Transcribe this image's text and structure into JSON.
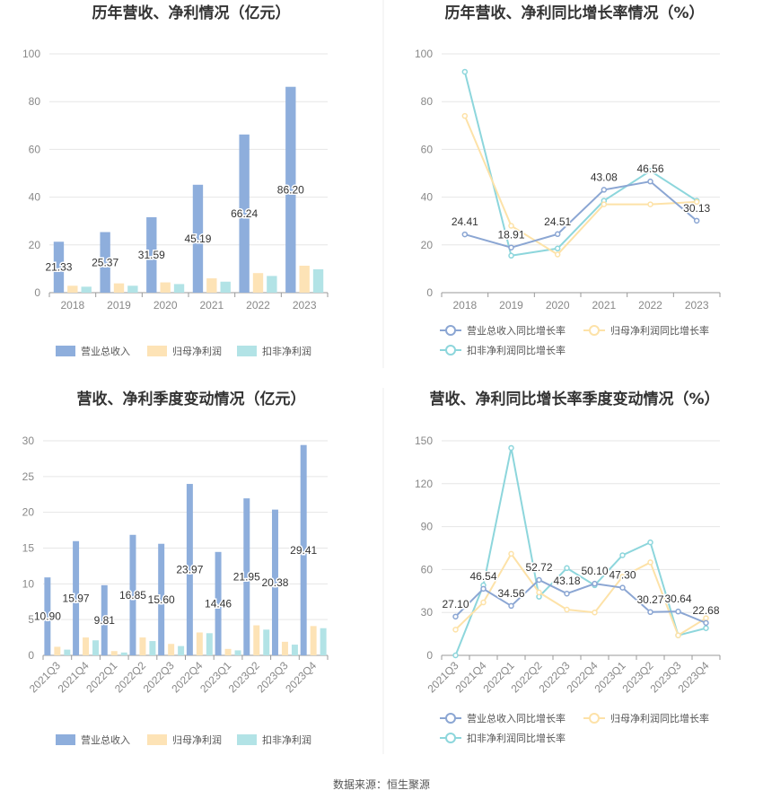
{
  "colors": {
    "revenue": "#8eaedc",
    "net": "#fde3b6",
    "deducted": "#b2e3e6",
    "revenue_line": "#8ba6d3",
    "net_line": "#fde2a8",
    "deducted_line": "#8dd6dc"
  },
  "legend_bars": [
    "营业总收入",
    "归母净利润",
    "扣非净利润"
  ],
  "legend_lines": [
    "营业总收入同比增长率",
    "归母净利润同比增长率",
    "扣非净利润同比增长率"
  ],
  "source": "数据来源：恒生聚源",
  "chart_data": [
    {
      "type": "bar",
      "title": "历年营收、净利情况（亿元）",
      "categories": [
        "2018",
        "2019",
        "2020",
        "2021",
        "2022",
        "2023"
      ],
      "ylim": [
        0,
        100
      ],
      "yticks": [
        0,
        20,
        40,
        60,
        80,
        100
      ],
      "series": [
        {
          "name": "营业总收入",
          "values": [
            21.33,
            25.37,
            31.59,
            45.19,
            66.24,
            86.2
          ],
          "labels": [
            "21.33",
            "25.37",
            "31.59",
            "45.19",
            "66.24",
            "86.20"
          ]
        },
        {
          "name": "归母净利润",
          "values": [
            2.9,
            3.9,
            4.3,
            6.0,
            8.2,
            11.3
          ]
        },
        {
          "name": "扣非净利润",
          "values": [
            2.5,
            2.9,
            3.6,
            4.6,
            7.0,
            9.8
          ]
        }
      ],
      "grid": true,
      "legend": "bottom"
    },
    {
      "type": "line",
      "title": "历年营收、净利同比增长率情况（%）",
      "categories": [
        "2018",
        "2019",
        "2020",
        "2021",
        "2022",
        "2023"
      ],
      "ylim": [
        0,
        100
      ],
      "yticks": [
        0,
        20,
        40,
        60,
        80,
        100
      ],
      "series": [
        {
          "name": "营业总收入同比增长率",
          "values": [
            24.41,
            18.91,
            24.51,
            43.08,
            46.56,
            30.13
          ],
          "labels": [
            "24.41",
            "18.91",
            "24.51",
            "43.08",
            "46.56",
            "30.13"
          ]
        },
        {
          "name": "归母净利润同比增长率",
          "values": [
            74.0,
            28.0,
            16.0,
            37.0,
            37.0,
            38.0
          ]
        },
        {
          "name": "扣非净利润同比增长率",
          "values": [
            92.5,
            15.5,
            18.5,
            38.5,
            51.0,
            38.5
          ]
        }
      ],
      "grid": true,
      "legend": "bottom"
    },
    {
      "type": "bar",
      "title": "营收、净利季度变动情况（亿元）",
      "categories": [
        "2021Q3",
        "2021Q4",
        "2022Q1",
        "2022Q2",
        "2022Q3",
        "2022Q4",
        "2023Q1",
        "2023Q2",
        "2023Q3",
        "2023Q4"
      ],
      "ylim": [
        0,
        30
      ],
      "yticks": [
        0,
        5,
        10,
        15,
        20,
        25,
        30
      ],
      "series": [
        {
          "name": "营业总收入",
          "values": [
            10.9,
            15.97,
            9.81,
            16.85,
            15.6,
            23.97,
            14.46,
            21.95,
            20.38,
            29.41
          ],
          "labels": [
            "10.90",
            "15.97",
            "9.81",
            "16.85",
            "15.60",
            "23.97",
            "14.46",
            "21.95",
            "20.38",
            "29.41"
          ]
        },
        {
          "name": "归母净利润",
          "values": [
            1.2,
            2.5,
            0.6,
            2.5,
            1.6,
            3.2,
            0.9,
            4.2,
            1.9,
            4.1
          ]
        },
        {
          "name": "扣非净利润",
          "values": [
            0.8,
            2.1,
            0.4,
            2.0,
            1.3,
            3.1,
            0.7,
            3.6,
            1.5,
            3.8
          ]
        }
      ],
      "grid": true,
      "legend": "bottom"
    },
    {
      "type": "line",
      "title": "营收、净利同比增长率季度变动情况（%）",
      "categories": [
        "2021Q3",
        "2021Q4",
        "2022Q1",
        "2022Q2",
        "2022Q3",
        "2022Q4",
        "2023Q1",
        "2023Q2",
        "2023Q3",
        "2023Q4"
      ],
      "ylim": [
        0,
        150
      ],
      "yticks": [
        0,
        30,
        60,
        90,
        120,
        150
      ],
      "series": [
        {
          "name": "营业总收入同比增长率",
          "values": [
            27.1,
            46.54,
            34.56,
            52.72,
            43.18,
            50.1,
            47.3,
            30.27,
            30.64,
            22.68
          ],
          "labels": [
            "27.10",
            "46.54",
            "34.56",
            "52.72",
            "43.18",
            "50.10",
            "47.30",
            "30.27",
            "30.64",
            "22.68"
          ]
        },
        {
          "name": "归母净利润同比增长率",
          "values": [
            18,
            37,
            71,
            44,
            32,
            30,
            55,
            65,
            14,
            26
          ]
        },
        {
          "name": "扣非净利润同比增长率",
          "values": [
            0,
            49,
            145,
            41,
            61,
            49,
            70,
            79,
            14,
            19
          ]
        }
      ],
      "grid": true,
      "legend": "bottom"
    }
  ]
}
